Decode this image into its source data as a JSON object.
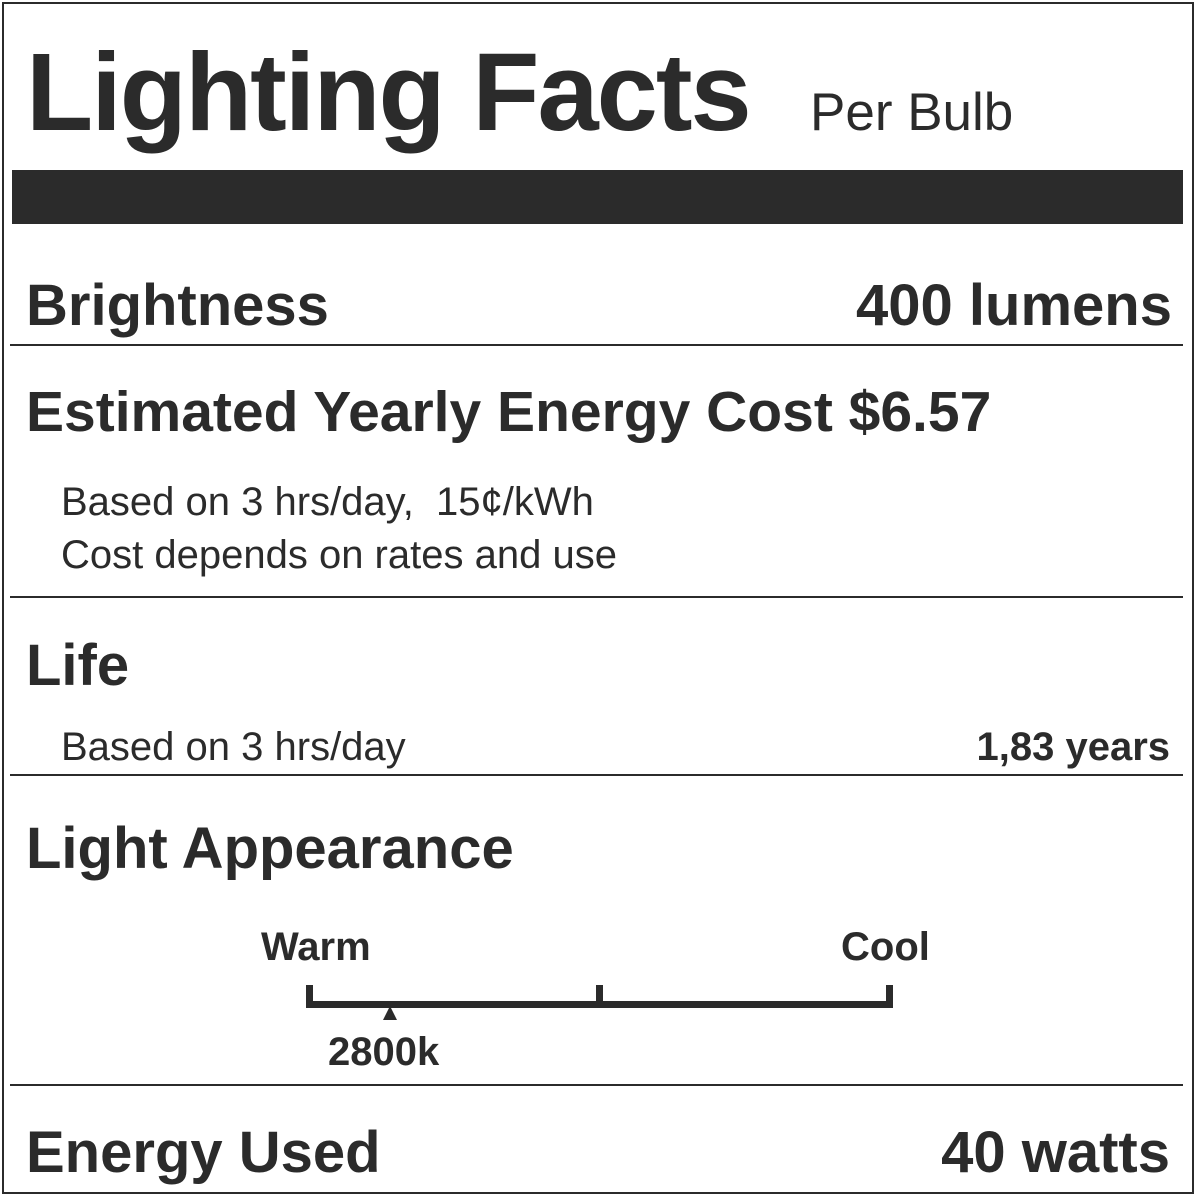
{
  "header": {
    "title": "Lighting Facts",
    "subtitle": "Per Bulb"
  },
  "brightness": {
    "label": "Brightness",
    "value": "400 lumens"
  },
  "cost": {
    "label": "Estimated Yearly Energy Cost $6.57",
    "note1": "Based on 3 hrs/day,  15¢/kWh",
    "note2": "Cost depends on rates and use"
  },
  "life": {
    "label": "Life",
    "note": "Based on 3 hrs/day",
    "value": "1,83 years"
  },
  "appearance": {
    "label": "Light Appearance",
    "warm_label": "Warm",
    "cool_label": "Cool",
    "marker_label": "2800k",
    "scale_fraction": 0.14
  },
  "energy": {
    "label": "Energy Used",
    "value": "40 watts"
  },
  "colors": {
    "ink": "#2b2b2b",
    "background": "#ffffff"
  }
}
